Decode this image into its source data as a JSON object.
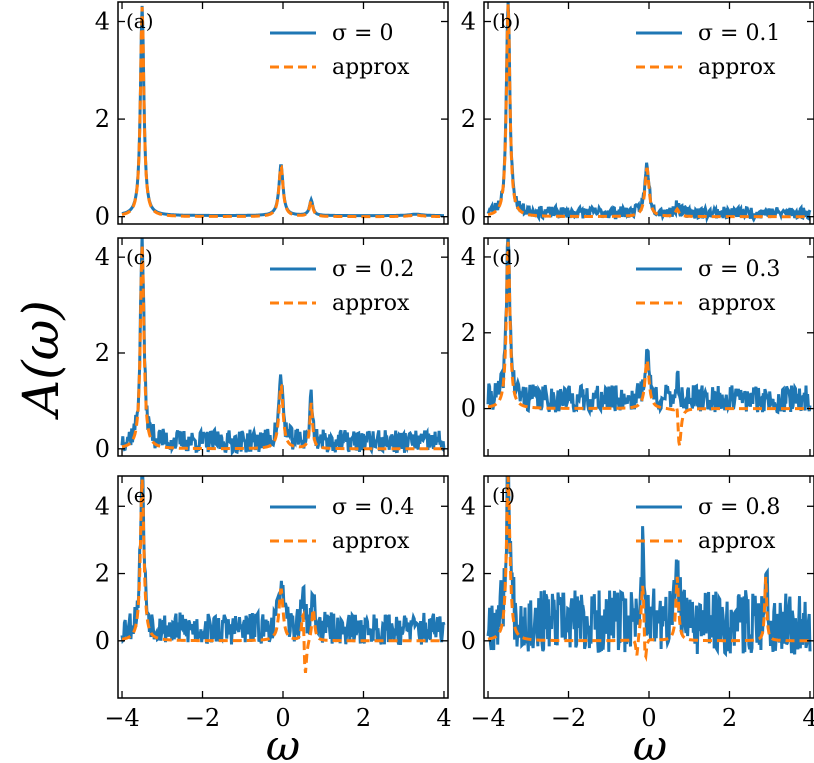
{
  "figure": {
    "ylabel": "A(ω)",
    "xlabel": "ω"
  },
  "colors": {
    "exact": "#1f77b4",
    "approx": "#ff7f0e"
  },
  "chart_data": [
    {
      "type": "line",
      "panel_label": "(a)",
      "legend": [
        "σ = 0",
        "approx"
      ],
      "legend_placement": "top-right",
      "xlim": [
        -4.1,
        4.1
      ],
      "ylim": [
        -0.15,
        4.4
      ],
      "xticks": [],
      "yticks": [
        0,
        2,
        4
      ],
      "peaks": [
        {
          "x": -3.5,
          "height": 4.3,
          "width": 0.05
        },
        {
          "x": -0.05,
          "height": 1.05,
          "width": 0.06
        },
        {
          "x": 0.7,
          "height": 0.32,
          "width": 0.05
        },
        {
          "x": 3.3,
          "height": 0.03,
          "width": 0.2
        }
      ],
      "series": [
        {
          "name": "σ = 0",
          "noise_sigma": 0,
          "seed": 11,
          "offset": 0.02
        },
        {
          "name": "approx",
          "dashed": true,
          "seed": 0,
          "dips": []
        }
      ]
    },
    {
      "type": "line",
      "panel_label": "(b)",
      "legend": [
        "σ = 0.1",
        "approx"
      ],
      "legend_placement": "top-right",
      "xlim": [
        -4.1,
        4.1
      ],
      "ylim": [
        -0.15,
        4.4
      ],
      "xticks": [],
      "yticks": [
        0,
        2,
        4
      ],
      "peaks": [
        {
          "x": -3.5,
          "height": 4.35,
          "width": 0.05
        },
        {
          "x": -0.05,
          "height": 1.0,
          "width": 0.06
        },
        {
          "x": 0.7,
          "height": 0.15,
          "width": 0.05
        }
      ],
      "series": [
        {
          "name": "σ = 0.1",
          "noise_sigma": 0.1,
          "seed": 23,
          "offset": 0.08
        },
        {
          "name": "approx",
          "dashed": true,
          "seed": 0,
          "dips": []
        }
      ]
    },
    {
      "type": "line",
      "panel_label": "(c)",
      "legend": [
        "σ = 0.2",
        "approx"
      ],
      "legend_placement": "top-right",
      "xlim": [
        -4.1,
        4.1
      ],
      "ylim": [
        -0.15,
        4.4
      ],
      "xticks": [],
      "yticks": [
        0,
        2,
        4
      ],
      "peaks": [
        {
          "x": -3.5,
          "height": 4.25,
          "width": 0.05
        },
        {
          "x": -0.05,
          "height": 1.35,
          "width": 0.06
        },
        {
          "x": 0.7,
          "height": 0.95,
          "width": 0.04
        }
      ],
      "series": [
        {
          "name": "σ = 0.2",
          "noise_sigma": 0.2,
          "seed": 37,
          "offset": 0.15
        },
        {
          "name": "approx",
          "dashed": true,
          "seed": 0,
          "dips": []
        }
      ]
    },
    {
      "type": "line",
      "panel_label": "(d)",
      "legend": [
        "σ = 0.3",
        "approx"
      ],
      "legend_placement": "top-right",
      "xlim": [
        -4.1,
        4.1
      ],
      "ylim": [
        -1.25,
        4.5
      ],
      "xticks": [],
      "yticks": [
        0,
        2,
        4
      ],
      "peaks": [
        {
          "x": -3.5,
          "height": 4.4,
          "width": 0.05
        },
        {
          "x": -0.05,
          "height": 1.3,
          "width": 0.06
        },
        {
          "x": 0.7,
          "height": 0.55,
          "width": 0.04
        }
      ],
      "series": [
        {
          "name": "σ = 0.3",
          "noise_sigma": 0.3,
          "seed": 41,
          "offset": 0.25
        },
        {
          "name": "approx",
          "dashed": true,
          "seed": 0,
          "dips": [
            {
              "x": 0.75,
              "depth": -1.2,
              "width": 0.05
            }
          ]
        }
      ]
    },
    {
      "type": "line",
      "panel_label": "(e)",
      "legend": [
        "σ = 0.4",
        "approx"
      ],
      "legend_placement": "top-right",
      "xlim": [
        -4.1,
        4.1
      ],
      "ylim": [
        -1.7,
        4.9
      ],
      "xticks": [
        -4,
        -2,
        0,
        2,
        4
      ],
      "yticks": [
        0,
        2,
        4
      ],
      "peaks": [
        {
          "x": -3.5,
          "height": 4.8,
          "width": 0.05
        },
        {
          "x": -0.05,
          "height": 1.55,
          "width": 0.06
        },
        {
          "x": 0.5,
          "height": 1.3,
          "width": 0.04
        },
        {
          "x": 0.75,
          "height": 1.0,
          "width": 0.04
        }
      ],
      "series": [
        {
          "name": "σ = 0.4",
          "noise_sigma": 0.4,
          "seed": 53,
          "offset": 0.35
        },
        {
          "name": "approx",
          "dashed": true,
          "seed": 0,
          "dips": [
            {
              "x": 0.55,
              "depth": -1.5,
              "width": 0.04
            }
          ]
        }
      ]
    },
    {
      "type": "line",
      "panel_label": "(f)",
      "legend": [
        "σ = 0.8",
        "approx"
      ],
      "legend_placement": "top-right",
      "xlim": [
        -4.1,
        4.1
      ],
      "ylim": [
        -1.7,
        4.9
      ],
      "xticks": [
        -4,
        -2,
        0,
        2,
        4
      ],
      "yticks": [
        0,
        2,
        4
      ],
      "peaks": [
        {
          "x": -3.5,
          "height": 4.9,
          "width": 0.05
        },
        {
          "x": -0.15,
          "height": 2.2,
          "width": 0.05
        },
        {
          "x": 0.7,
          "height": 1.9,
          "width": 0.04
        },
        {
          "x": 2.9,
          "height": 1.9,
          "width": 0.03
        }
      ],
      "series": [
        {
          "name": "σ = 0.8",
          "noise_sigma": 0.8,
          "seed": 67,
          "offset": 0.55
        },
        {
          "name": "approx",
          "dashed": true,
          "seed": 0,
          "dips": [
            {
              "x": -0.1,
              "depth": -1.5,
              "width": 0.04
            },
            {
              "x": -0.3,
              "depth": -0.6,
              "width": 0.03
            }
          ]
        }
      ]
    }
  ]
}
